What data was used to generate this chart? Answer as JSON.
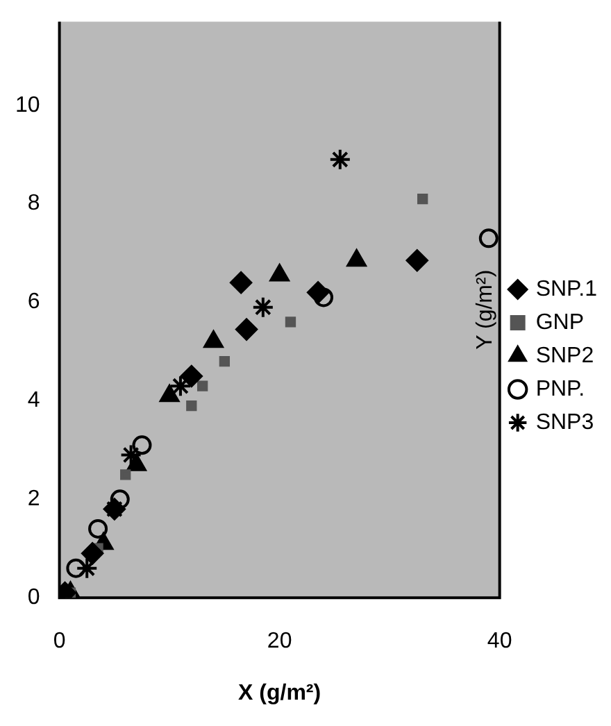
{
  "chart_data": {
    "type": "scatter",
    "xlabel": "X (g/m²)",
    "ylabel": "Y (g/m²)",
    "xlim": [
      0,
      40
    ],
    "xticks": [
      0,
      20,
      40
    ],
    "ylim": [
      0,
      11.7
    ],
    "yticks": [
      0,
      2,
      4,
      6,
      8,
      10
    ],
    "grid": false,
    "legend": "right",
    "series": [
      {
        "name": "SNP.1",
        "color": "#000000",
        "marker": "diamond",
        "x": [
          0.5,
          3,
          5,
          12,
          17,
          16.5,
          23.5,
          32.5
        ],
        "values": [
          0.1,
          0.9,
          1.8,
          4.5,
          5.45,
          6.4,
          6.2,
          6.85
        ]
      },
      {
        "name": "GNP",
        "color": "#555555",
        "marker": "square",
        "x": [
          1,
          3.5,
          6,
          12,
          13,
          15,
          21,
          33
        ],
        "values": [
          0.1,
          1,
          2.5,
          3.9,
          4.3,
          4.8,
          5.6,
          8.1
        ]
      },
      {
        "name": "SNP2",
        "color": "#000000",
        "marker": "triangle",
        "x": [
          1,
          4,
          7,
          10,
          14,
          20,
          27
        ],
        "values": [
          0.1,
          1.1,
          2.7,
          4.1,
          5.2,
          6.55,
          6.85
        ]
      },
      {
        "name": "PNP.",
        "color": "#000000",
        "marker": "circle",
        "x": [
          1.5,
          3.5,
          5.5,
          7.5,
          24,
          39
        ],
        "values": [
          0.6,
          1.4,
          2,
          3.1,
          6.1,
          7.3
        ]
      },
      {
        "name": "SNP3",
        "color": "#000000",
        "marker": "cross",
        "x": [
          2.5,
          5,
          6.5,
          11,
          18.5,
          25.5
        ],
        "values": [
          0.6,
          1.8,
          2.9,
          4.3,
          5.9,
          8.9
        ]
      }
    ]
  }
}
